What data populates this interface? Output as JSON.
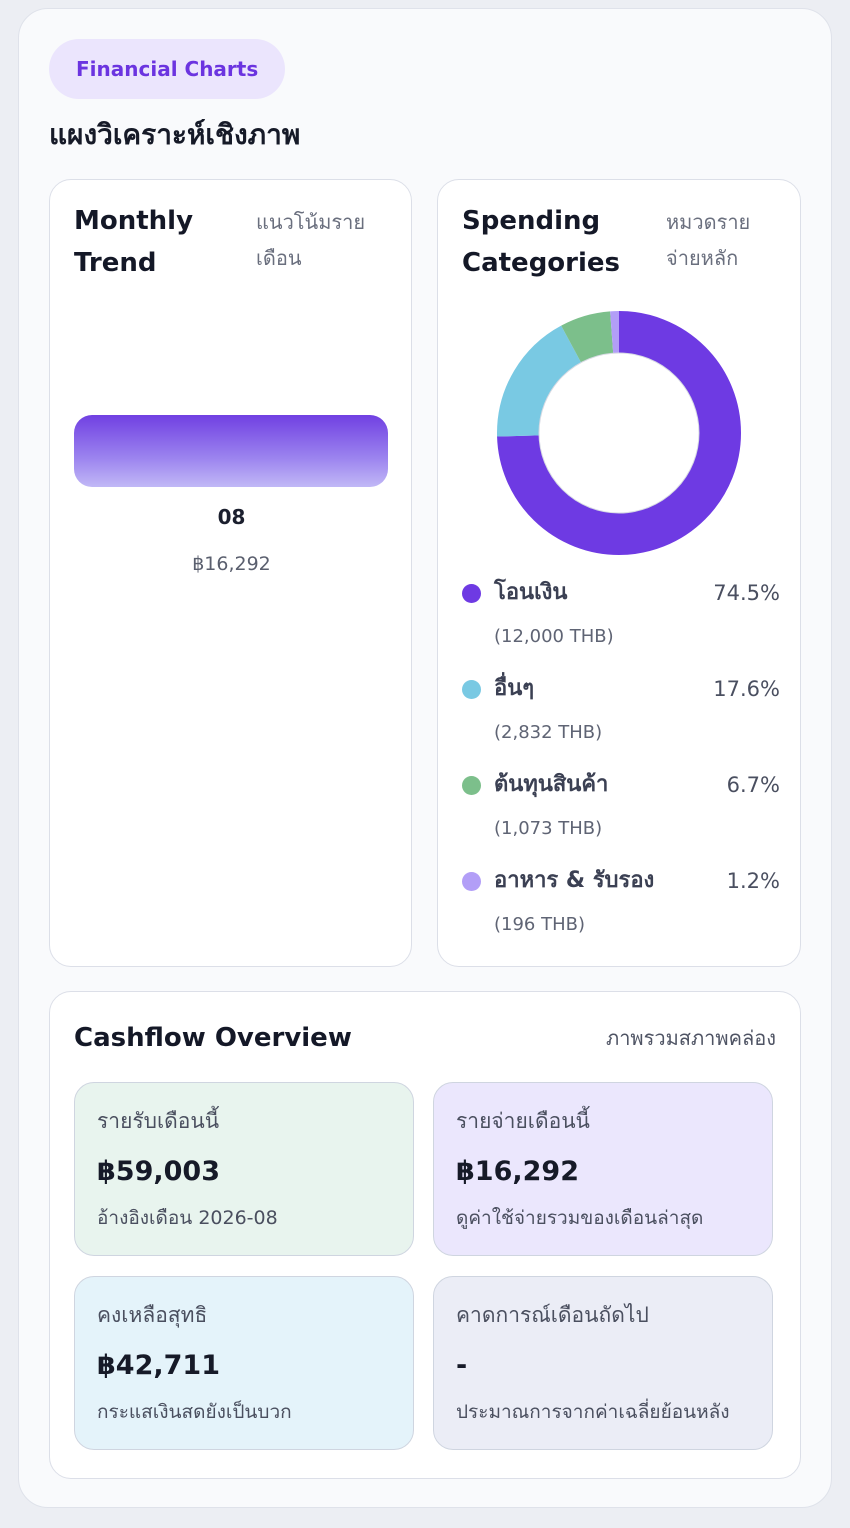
{
  "header": {
    "badge": "Financial Charts",
    "title": "แผงวิเคราะห์เชิงภาพ"
  },
  "monthly_trend": {
    "title": "Monthly Trend",
    "subtitle": "แนวโน้มรายเดือน",
    "bars": [
      {
        "label": "08",
        "value_text": "฿16,292",
        "value": 16292
      }
    ]
  },
  "spending": {
    "title": "Spending Categories",
    "subtitle": "หมวดรายจ่ายหลัก",
    "items": [
      {
        "name": "โอนเงิน",
        "pct": "74.5%",
        "amount": "(12,000 THB)",
        "value": 74.5,
        "color": "#6e3ae3"
      },
      {
        "name": "อื่นๆ",
        "pct": "17.6%",
        "amount": "(2,832 THB)",
        "value": 17.6,
        "color": "#79c9e3"
      },
      {
        "name": "ต้นทุนสินค้า",
        "pct": "6.7%",
        "amount": "(1,073 THB)",
        "value": 6.7,
        "color": "#7cbf8b"
      },
      {
        "name": "อาหาร & รับรอง",
        "pct": "1.2%",
        "amount": "(196 THB)",
        "value": 1.2,
        "color": "#b29ef7"
      }
    ]
  },
  "cashflow": {
    "title": "Cashflow Overview",
    "subtitle": "ภาพรวมสภาพคล่อง",
    "tiles": [
      {
        "label": "รายรับเดือนนี้",
        "value": "฿59,003",
        "note": "อ้างอิงเดือน 2026-08",
        "bg": "#e8f4ee"
      },
      {
        "label": "รายจ่ายเดือนนี้",
        "value": "฿16,292",
        "note": "ดูค่าใช้จ่ายรวมของเดือนล่าสุด",
        "bg": "#ebe7fd"
      },
      {
        "label": "คงเหลือสุทธิ",
        "value": "฿42,711",
        "note": "กระแสเงินสดยังเป็นบวก",
        "bg": "#e4f3fa"
      },
      {
        "label": "คาดการณ์เดือนถัดไป",
        "value": "-",
        "note": "ประมาณการจากค่าเฉลี่ยย้อนหลัง",
        "bg": "#ebedf6"
      }
    ]
  }
}
